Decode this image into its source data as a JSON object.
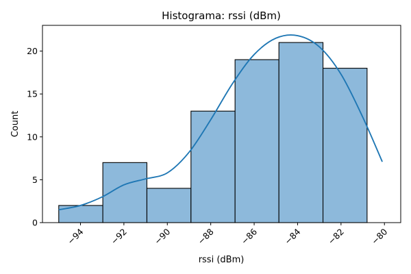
{
  "chart_data": {
    "type": "bar",
    "subtype": "histogram",
    "title": "Histograma: rssi (dBm)",
    "xlabel": "rssi (dBm)",
    "ylabel": "Count",
    "bin_edges": [
      -95.0,
      -92.97,
      -90.94,
      -88.91,
      -86.88,
      -84.86,
      -82.83,
      -80.8
    ],
    "values": [
      2,
      7,
      4,
      13,
      19,
      21,
      18
    ],
    "xlim": [
      -95.75,
      -79.25
    ],
    "ylim": [
      0,
      23
    ],
    "x_ticks": [
      -94,
      -92,
      -90,
      -88,
      -86,
      -84,
      -82,
      -80
    ],
    "x_tick_labels": [
      "−94",
      "−92",
      "−90",
      "−88",
      "−86",
      "−84",
      "−82",
      "−80"
    ],
    "y_ticks": [
      0,
      5,
      10,
      15,
      20
    ],
    "y_tick_labels": [
      "0",
      "5",
      "10",
      "15",
      "20"
    ],
    "kde": {
      "x": [
        -95.0,
        -94,
        -93,
        -92,
        -91,
        -90,
        -89,
        -88,
        -87,
        -86,
        -85,
        -84,
        -83,
        -82,
        -81,
        -80.1
      ],
      "y": [
        1.5,
        2.0,
        3.0,
        4.4,
        5.1,
        5.8,
        8.2,
        12.0,
        16.2,
        19.6,
        21.5,
        21.8,
        20.5,
        17.3,
        12.3,
        7.1
      ]
    },
    "grid": false,
    "legend": "none",
    "colors": {
      "bar_fill": "#8db9db",
      "bar_edge": "#000000",
      "kde_line": "#1f77b4"
    }
  }
}
